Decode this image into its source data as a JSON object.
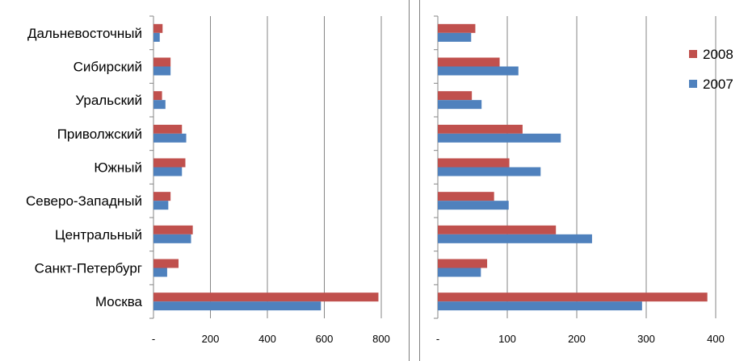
{
  "chart_data": [
    {
      "type": "bar",
      "orientation": "horizontal",
      "categories": [
        "Дальневосточный",
        "Сибирский",
        "Уральский",
        "Приволжский",
        "Южный",
        "Северо-Западный",
        "Центральный",
        "Санкт-Петербург",
        "Москва"
      ],
      "series": [
        {
          "name": "2008",
          "color": "#c0504d",
          "values": [
            32,
            60,
            30,
            100,
            112,
            60,
            138,
            88,
            790
          ]
        },
        {
          "name": "2007",
          "color": "#4f81bd",
          "values": [
            22,
            60,
            42,
            115,
            100,
            52,
            132,
            48,
            588
          ]
        }
      ],
      "xlim": [
        0,
        800
      ],
      "xticks": [
        "-",
        "200",
        "400",
        "600",
        "800"
      ],
      "grid": true
    },
    {
      "type": "bar",
      "orientation": "horizontal",
      "categories": [
        "Дальневосточный",
        "Сибирский",
        "Уральский",
        "Приволжский",
        "Южный",
        "Северо-Западный",
        "Центральный",
        "Санкт-Петербург",
        "Москва"
      ],
      "series": [
        {
          "name": "2008",
          "color": "#c0504d",
          "values": [
            54,
            89,
            49,
            122,
            103,
            81,
            170,
            71,
            388
          ]
        },
        {
          "name": "2007",
          "color": "#4f81bd",
          "values": [
            48,
            116,
            63,
            177,
            148,
            102,
            222,
            62,
            294
          ]
        }
      ],
      "xlim": [
        0,
        400
      ],
      "xticks": [
        "-",
        "100",
        "200",
        "300",
        "400"
      ],
      "grid": true,
      "legend": {
        "position": "top-right",
        "entries": [
          "2008",
          "2007"
        ]
      }
    }
  ]
}
